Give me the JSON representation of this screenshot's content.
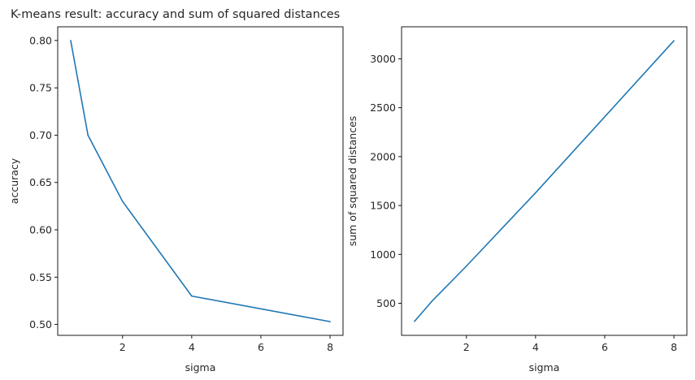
{
  "chart_data": [
    {
      "type": "line",
      "title": "K-means result: accuracy and sum of squared distances",
      "xlabel": "sigma",
      "ylabel": "accuracy",
      "x": [
        0.5,
        1,
        2,
        4,
        8
      ],
      "series": [
        {
          "values": [
            0.8,
            0.7,
            0.63,
            0.53,
            0.503
          ],
          "color": "#1f77b4"
        }
      ],
      "xlim": [
        0.125,
        8.375
      ],
      "ylim": [
        0.4885,
        0.8145
      ],
      "xticks": [
        2,
        4,
        6,
        8
      ],
      "xtick_labels": [
        "2",
        "4",
        "6",
        "8"
      ],
      "yticks": [
        0.5,
        0.55,
        0.6,
        0.65,
        0.7,
        0.75,
        0.8
      ],
      "ytick_labels": [
        "0.50",
        "0.55",
        "0.60",
        "0.65",
        "0.70",
        "0.75",
        "0.80"
      ],
      "grid": false
    },
    {
      "type": "line",
      "title": "",
      "xlabel": "sigma",
      "ylabel": "sum of squared distances",
      "x": [
        0.5,
        1,
        2,
        4,
        8
      ],
      "series": [
        {
          "values": [
            315,
            520,
            880,
            1630,
            3185
          ],
          "color": "#1f77b4"
        }
      ],
      "xlim": [
        0.125,
        8.375
      ],
      "ylim": [
        172,
        3328
      ],
      "xticks": [
        2,
        4,
        6,
        8
      ],
      "xtick_labels": [
        "2",
        "4",
        "6",
        "8"
      ],
      "yticks": [
        500,
        1000,
        1500,
        2000,
        2500,
        3000
      ],
      "ytick_labels": [
        "500",
        "1000",
        "1500",
        "2000",
        "2500",
        "3000"
      ],
      "grid": false
    }
  ]
}
